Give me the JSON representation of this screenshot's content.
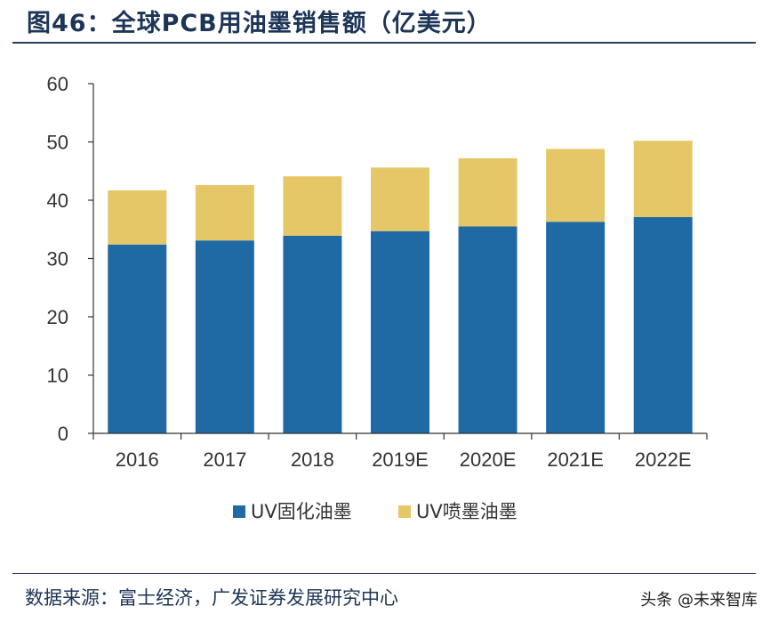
{
  "header": {
    "title": "图46：全球PCB用油墨销售额（亿美元）"
  },
  "chart_data": {
    "type": "bar",
    "stacked": true,
    "categories": [
      "2016",
      "2017",
      "2018",
      "2019E",
      "2020E",
      "2021E",
      "2022E"
    ],
    "series": [
      {
        "name": "UV固化油墨",
        "color": "#1f6aa5",
        "values": [
          32.4,
          33.1,
          33.9,
          34.7,
          35.5,
          36.3,
          37.1
        ]
      },
      {
        "name": "UV喷墨油墨",
        "color": "#e6c767",
        "values": [
          9.3,
          9.5,
          10.2,
          10.9,
          11.7,
          12.5,
          13.1
        ]
      }
    ],
    "ylim": [
      0,
      60
    ],
    "yticks": [
      0,
      10,
      20,
      30,
      40,
      50,
      60
    ],
    "legend_position": "bottom",
    "grid": false
  },
  "footer": {
    "source": "数据来源：富士经济，广发证券发展研究中心",
    "watermark": "头条 @未来智库"
  }
}
